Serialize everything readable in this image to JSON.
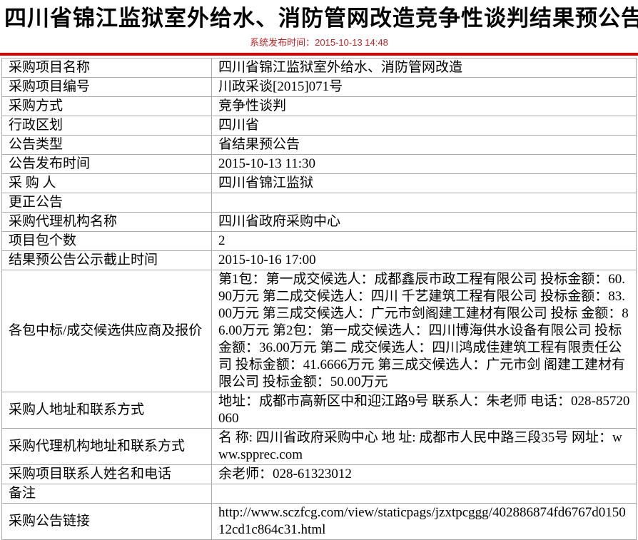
{
  "page": {
    "title": "四川省锦江监狱室外给水、消防管网改造竞争性谈判结果预公告",
    "publish_time": "系统发布时间：2015-10-13 14:48"
  },
  "colors": {
    "accent_red_rule": "#dd0000",
    "publish_time_red": "#c32222",
    "table_border_gray": "#a9a9a9"
  },
  "table": {
    "rows": [
      {
        "label": "采购项目名称",
        "value": "四川省锦江监狱室外给水、消防管网改造"
      },
      {
        "label": "采购项目编号",
        "value": "川政采谈[2015]071号"
      },
      {
        "label": "采购方式",
        "value": "竞争性谈判"
      },
      {
        "label": "行政区划",
        "value": "四川省"
      },
      {
        "label": "公告类型",
        "value": "省结果预公告"
      },
      {
        "label": "公告发布时间",
        "value": "2015-10-13 11:30"
      },
      {
        "label": "采 购 人",
        "value": "四川省锦江监狱"
      },
      {
        "label": "更正公告",
        "value": ""
      },
      {
        "label": "采购代理机构名称",
        "value": "四川省政府采购中心"
      },
      {
        "label": "项目包个数",
        "value": "2"
      },
      {
        "label": "结果预公告公示截止时间",
        "value": "2015-10-16 17:00"
      },
      {
        "label": "各包中标/成交候选供应商及报价",
        "value": "第1包：第一成交候选人：成都鑫辰市政工程有限公司 投标金额：60.90万元 第二成交候选人：四川 千艺建筑工程有限公司 投标金额：83.00万元 第三成交候选人：广元市剑阁建工建材有限公司 投标 金额：86.00万元 第2包：第一成交候选人：四川博海供水设备有限公司 投标金额：36.00万元 第二 成交候选人：四川鸿成佳建筑工程有限责任公司 投标金额：41.6666万元 第三成交候选人：广元市剑 阁建工建材有限公司 投标金额：50.00万元"
      },
      {
        "label": "采购人地址和联系方式",
        "value": "地址：成都市高新区中和迎江路9号 联系人：朱老师 电话：028-85720060"
      },
      {
        "label": "采购代理机构地址和联系方式",
        "value": "名 称: 四川省政府采购中心 地 址: 成都市人民中路三段35号 网址：www.spprec.com"
      },
      {
        "label": "采购项目联系人姓名和电话",
        "value": "余老师：028-61323012"
      },
      {
        "label": "备注",
        "value": ""
      },
      {
        "label": "采购公告链接",
        "value": "http://www.sczfcg.com/view/staticpags/jzxtpcggg/402886874fd6767d015012cd1c864c31.html"
      }
    ]
  }
}
